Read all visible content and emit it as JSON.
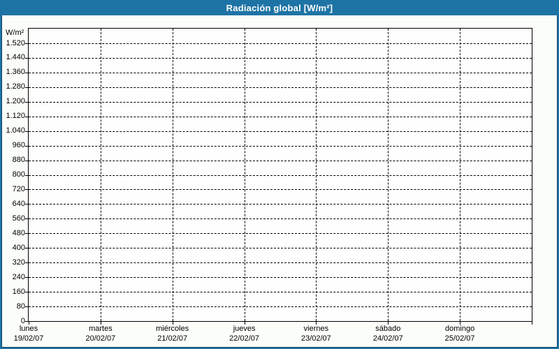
{
  "window": {
    "title": "Radiación global [W/m²]"
  },
  "colors": {
    "titlebar_blue": "#1e73a5",
    "frame_blue": "#1e73a5",
    "frame_inner_line_navy": "#17466a",
    "content_background": "#fbfdf9",
    "plot_background": "#fefefe",
    "grid_color": "#000000",
    "text_color": "#000000",
    "title_text_color": "#ffffff"
  },
  "chart_data": {
    "type": "line",
    "title": "Radiación global [W/m²]",
    "ylabel": "W/m²",
    "xlabel": "",
    "ylim": [
      0,
      1600
    ],
    "y_tick_step": 80,
    "y_tick_values": [
      0,
      80,
      160,
      240,
      320,
      400,
      480,
      560,
      640,
      720,
      800,
      880,
      960,
      1040,
      1120,
      1200,
      1280,
      1360,
      1440,
      1520
    ],
    "y_tick_labels": [
      "0",
      "80",
      "160",
      "240",
      "320",
      "400",
      "480",
      "560",
      "640",
      "720",
      "800",
      "880",
      "960",
      "1.040",
      "1.120",
      "1.200",
      "1.280",
      "1.360",
      "1.440",
      "1.520"
    ],
    "x_sections": 7,
    "x_days": [
      {
        "name": "lunes",
        "date": "19/02/07"
      },
      {
        "name": "martes",
        "date": "20/02/07"
      },
      {
        "name": "miércoles",
        "date": "21/02/07"
      },
      {
        "name": "jueves",
        "date": "22/02/07"
      },
      {
        "name": "viernes",
        "date": "23/02/07"
      },
      {
        "name": "sábado",
        "date": "24/02/07"
      },
      {
        "name": "domingo",
        "date": "25/02/07"
      }
    ],
    "series": [],
    "grid": true,
    "legend": false
  }
}
